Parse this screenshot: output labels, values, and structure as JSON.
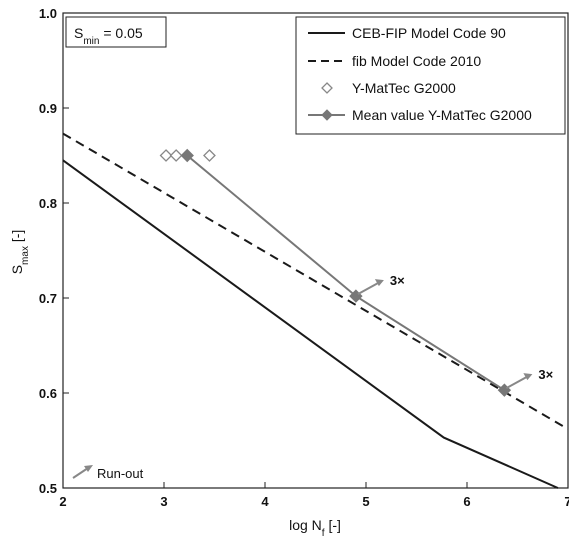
{
  "chart_data": {
    "type": "line",
    "xlabel": "log N",
    "xlabel_sub": "f",
    "xlabel_unit": " [-]",
    "ylabel": "S",
    "ylabel_sub": "max",
    "ylabel_unit": " [-]",
    "xlim": [
      2,
      7
    ],
    "ylim": [
      0.5,
      1.0
    ],
    "xticks": [
      "2",
      "3",
      "4",
      "5",
      "6",
      "7"
    ],
    "yticks": [
      "0.5",
      "0.6",
      "0.7",
      "0.8",
      "0.9",
      "1.0"
    ],
    "grid": false,
    "legend_position": "top-right",
    "smin_box": {
      "label": "S",
      "sub": "min",
      "value": " = 0.05"
    },
    "series": [
      {
        "name": "CEB-FIP Model Code 90",
        "style": "solid",
        "color": "#1a1a1a",
        "x": [
          2.0,
          5.77,
          6.9
        ],
        "y": [
          0.845,
          0.553,
          0.5
        ]
      },
      {
        "name": "fib Model Code 2010",
        "style": "dashed",
        "color": "#1a1a1a",
        "x": [
          2.0,
          7.0
        ],
        "y": [
          0.873,
          0.562
        ]
      },
      {
        "name": "Y-MatTec G2000",
        "style": "hollow-diamond",
        "color": "#888888",
        "x": [
          3.02,
          3.12,
          3.45
        ],
        "y": [
          0.85,
          0.85,
          0.85
        ]
      },
      {
        "name": "Mean value Y-MatTec G2000",
        "style": "line-diamond",
        "color": "#777777",
        "x": [
          3.23,
          4.9,
          6.37
        ],
        "y": [
          0.85,
          0.702,
          0.603
        ]
      }
    ],
    "annotations": [
      {
        "text": "3×",
        "x": 4.9,
        "y": 0.702
      },
      {
        "text": "3×",
        "x": 6.37,
        "y": 0.603
      }
    ],
    "runout_label": "Run-out"
  }
}
